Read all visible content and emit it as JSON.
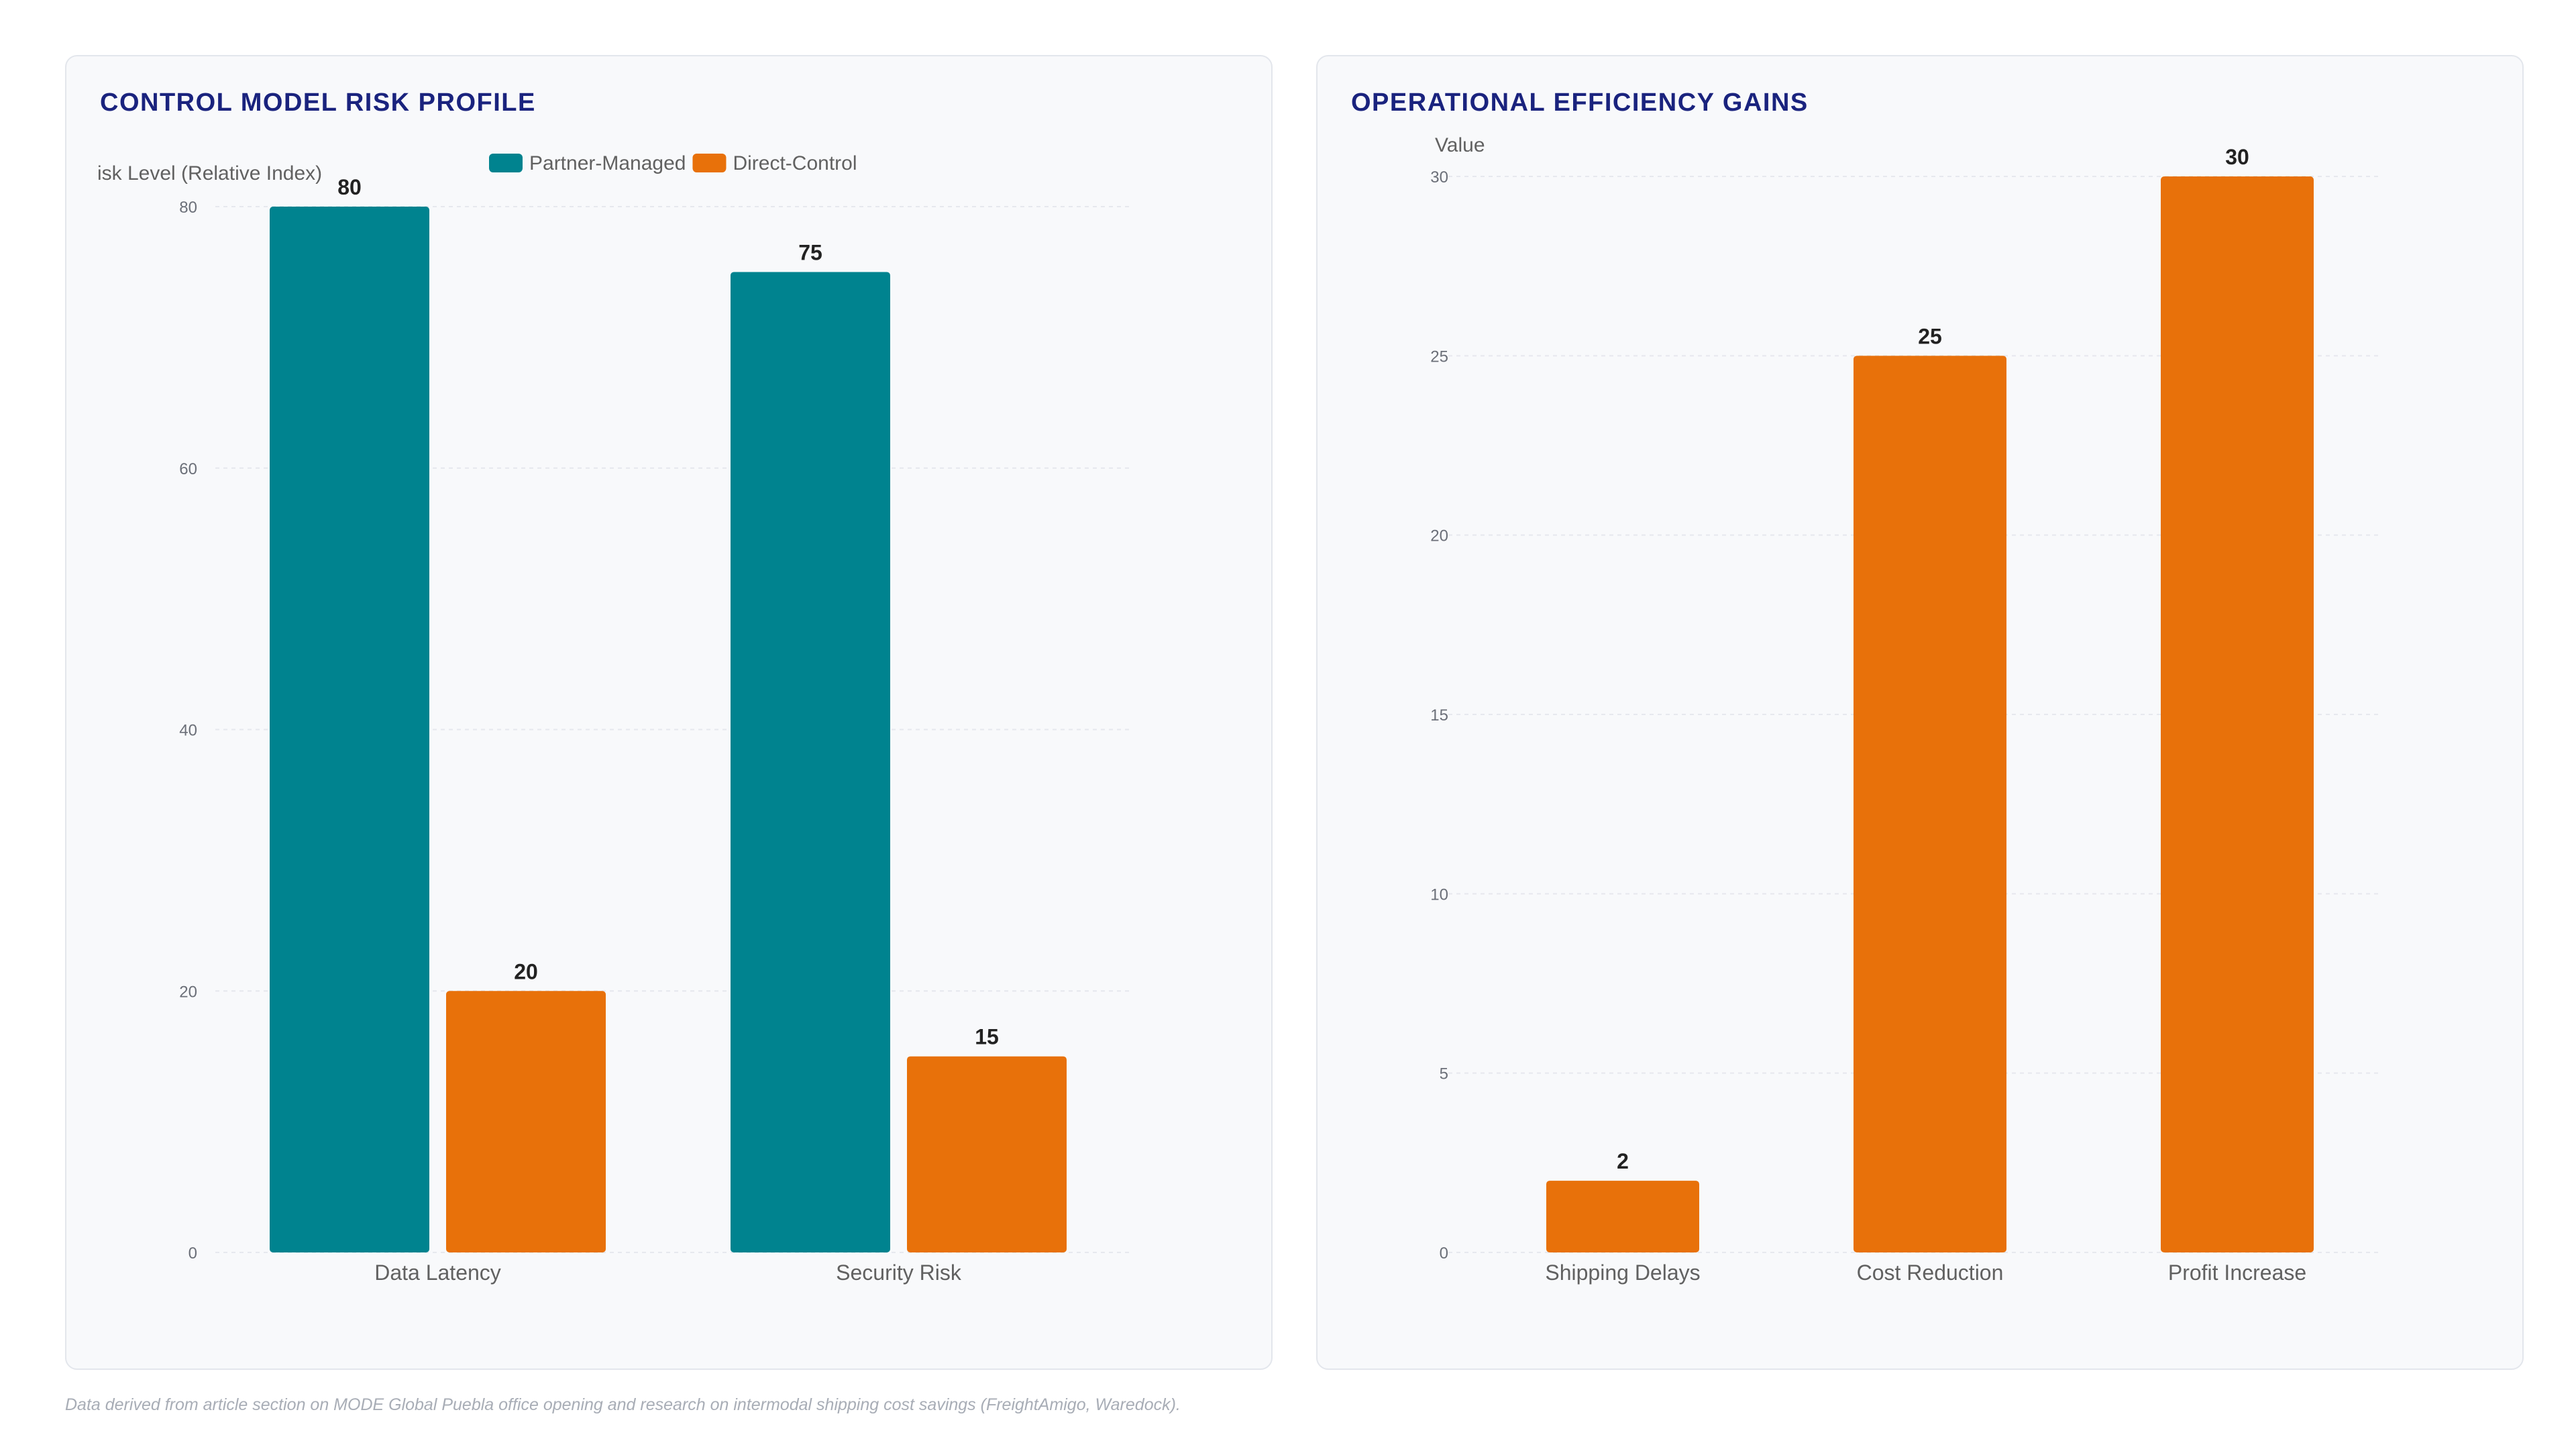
{
  "colors": {
    "partner": "#00838f",
    "direct": "#e8710a",
    "title": "#1a237e",
    "grid": "#e6e8ee",
    "tick": "#6b6f78",
    "axis_label": "#616161",
    "value_label": "#222222"
  },
  "footnote": "Data derived from article section on MODE Global Puebla office opening and research on intermodal shipping cost savings (FreightAmigo, Waredock).",
  "chart_data": [
    {
      "type": "bar",
      "title": "CONTROL MODEL RISK PROFILE",
      "ylabel": "isk Level (Relative Index)",
      "xlabel": "",
      "categories": [
        "Data Latency",
        "Security Risk"
      ],
      "series": [
        {
          "name": "Partner-Managed",
          "color": "#00838f",
          "values": [
            80,
            75
          ]
        },
        {
          "name": "Direct-Control",
          "color": "#e8710a",
          "values": [
            20,
            15
          ]
        }
      ],
      "ylim": [
        0,
        80
      ],
      "yticks": [
        0,
        20,
        40,
        60,
        80
      ],
      "grid": true,
      "legend": "top-center",
      "data_labels": true
    },
    {
      "type": "bar",
      "title": "OPERATIONAL EFFICIENCY GAINS",
      "ylabel": "Value",
      "xlabel": "",
      "categories": [
        "Shipping Delays",
        "Cost Reduction",
        "Profit Increase"
      ],
      "series": [
        {
          "color": "#e8710a",
          "values": [
            2,
            25,
            30
          ]
        }
      ],
      "ylim": [
        0,
        30
      ],
      "yticks": [
        0,
        5,
        10,
        15,
        20,
        25,
        30
      ],
      "grid": true,
      "legend": "none",
      "data_labels": true
    }
  ]
}
